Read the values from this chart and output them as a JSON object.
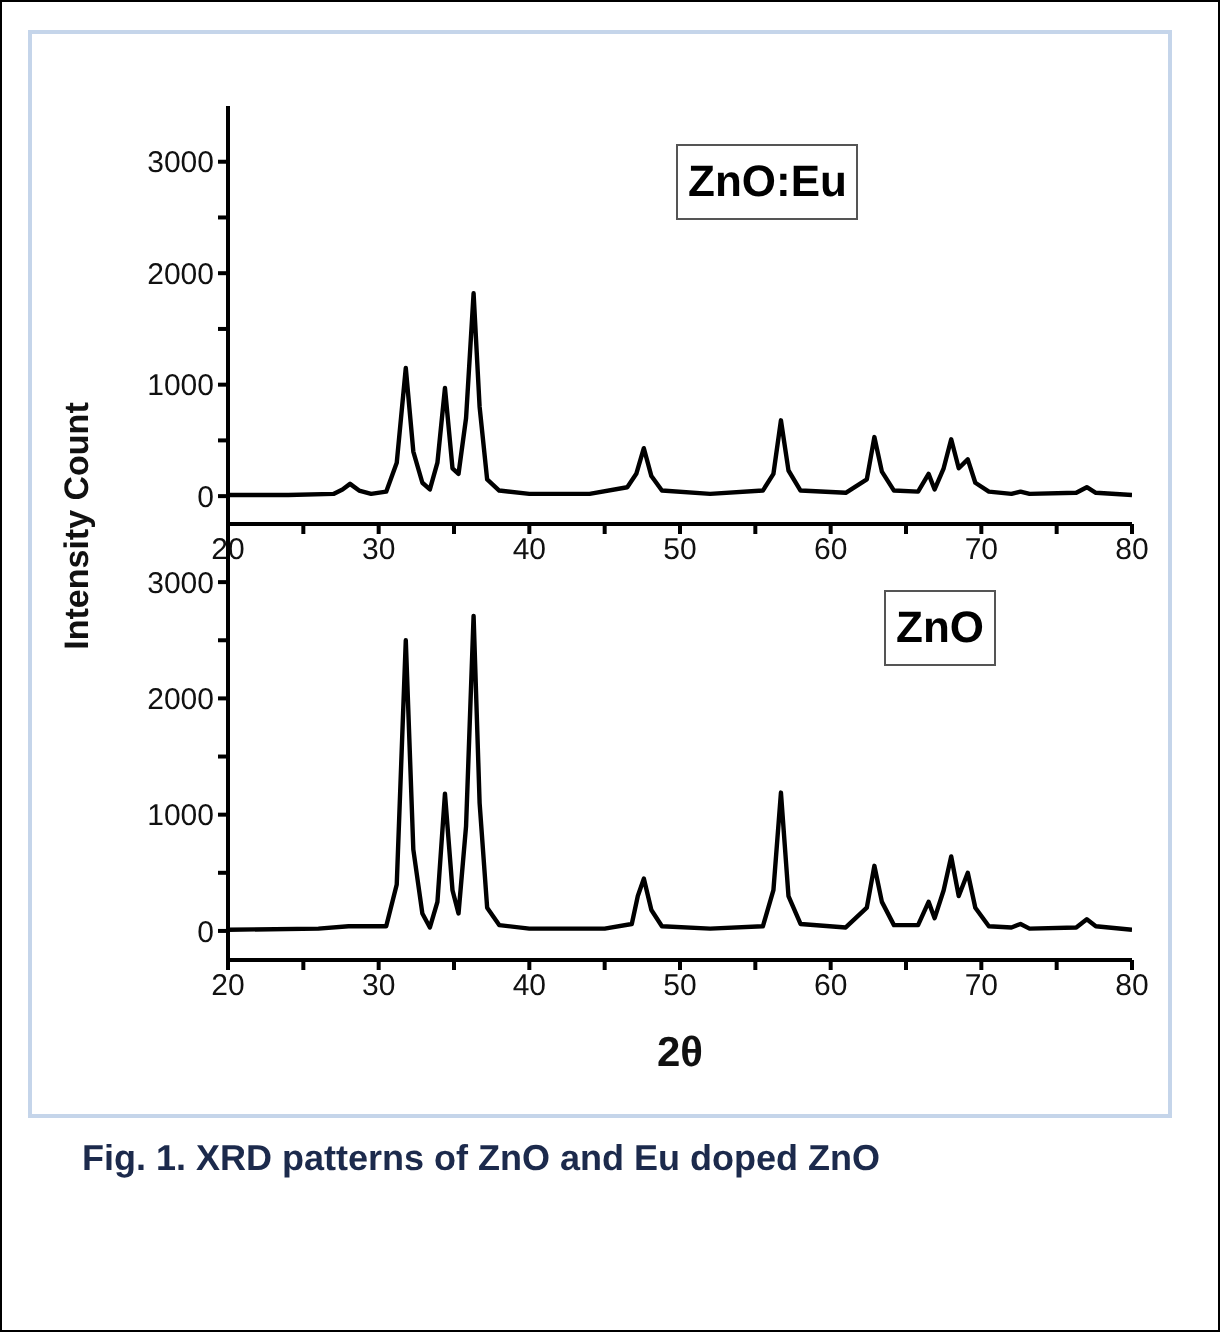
{
  "chart_data": [
    {
      "type": "line",
      "ylabel": "Intensity Count",
      "annotations": [
        "ZnO:Eu"
      ],
      "series": [
        {
          "color": "#000000",
          "x": [
            20,
            24,
            27,
            27.6,
            28.1,
            28.7,
            29.5,
            30.5,
            31.2,
            31.8,
            32.3,
            32.9,
            33.4,
            33.9,
            34.4,
            34.9,
            35.3,
            35.8,
            36.3,
            36.7,
            37.2,
            38,
            40,
            44,
            46.5,
            47.1,
            47.6,
            48.1,
            48.8,
            52,
            55.5,
            56.2,
            56.7,
            57.2,
            58,
            61,
            62.4,
            62.9,
            63.4,
            64.2,
            65.8,
            66.5,
            66.9,
            67.5,
            68,
            68.5,
            69.1,
            69.6,
            70.5,
            72,
            72.6,
            73.2,
            76.3,
            77,
            77.6,
            80
          ],
          "values": [
            10,
            10,
            20,
            60,
            110,
            50,
            20,
            40,
            300,
            1150,
            400,
            120,
            60,
            300,
            970,
            250,
            200,
            700,
            1820,
            800,
            150,
            50,
            20,
            20,
            80,
            200,
            430,
            180,
            50,
            20,
            50,
            200,
            680,
            230,
            50,
            30,
            150,
            530,
            220,
            50,
            40,
            200,
            60,
            250,
            510,
            250,
            330,
            120,
            40,
            20,
            40,
            20,
            30,
            80,
            30,
            10
          ]
        }
      ],
      "xlim": [
        20,
        80
      ],
      "xticks": [
        20,
        {
          "value": 25,
          "label": null
        },
        30,
        {
          "value": 35,
          "label": null
        },
        40,
        {
          "value": 45,
          "label": null
        },
        50,
        {
          "value": 55,
          "label": null
        },
        60,
        {
          "value": 65,
          "label": null
        },
        70,
        {
          "value": 75,
          "label": null
        },
        80
      ],
      "ylim": [
        -250,
        3500
      ],
      "yticks": [
        0,
        {
          "value": 500,
          "label": null
        },
        1000,
        {
          "value": 1500,
          "label": null
        },
        2000,
        {
          "value": 2500,
          "label": null
        },
        3000
      ],
      "grid": false,
      "legend": false
    },
    {
      "type": "line",
      "xlabel": "2θ",
      "annotations": [
        "ZnO",
        "Fig. 1. XRD patterns of ZnO and Eu doped ZnO"
      ],
      "series": [
        {
          "color": "#000000",
          "x": [
            20,
            26,
            28,
            30.5,
            31.2,
            31.8,
            32.3,
            32.9,
            33.4,
            33.9,
            34.4,
            34.9,
            35.3,
            35.8,
            36.3,
            36.7,
            37.2,
            38,
            40,
            45,
            46.8,
            47.2,
            47.6,
            48.1,
            48.8,
            52,
            55.5,
            56.2,
            56.7,
            57.2,
            58,
            61,
            62.4,
            62.9,
            63.4,
            64.2,
            65.8,
            66.5,
            66.9,
            67.5,
            68,
            68.5,
            69.1,
            69.6,
            70.5,
            72,
            72.6,
            73.2,
            76.3,
            77,
            77.6,
            80
          ],
          "values": [
            10,
            20,
            40,
            40,
            400,
            2500,
            700,
            150,
            30,
            250,
            1180,
            350,
            150,
            900,
            2710,
            1100,
            200,
            50,
            20,
            20,
            60,
            300,
            450,
            180,
            40,
            20,
            40,
            350,
            1190,
            300,
            60,
            30,
            200,
            560,
            250,
            50,
            50,
            250,
            110,
            350,
            640,
            300,
            500,
            200,
            40,
            30,
            60,
            20,
            30,
            100,
            40,
            10
          ]
        }
      ],
      "xlim": [
        20,
        80
      ],
      "xticks": [
        20,
        {
          "value": 25,
          "label": null
        },
        30,
        {
          "value": 35,
          "label": null
        },
        40,
        {
          "value": 45,
          "label": null
        },
        50,
        {
          "value": 55,
          "label": null
        },
        60,
        {
          "value": 65,
          "label": null
        },
        70,
        {
          "value": 75,
          "label": null
        },
        80
      ],
      "ylim": [
        -250,
        3500
      ],
      "yticks": [
        0,
        {
          "value": 500,
          "label": null
        },
        1000,
        {
          "value": 1500,
          "label": null
        },
        2000,
        {
          "value": 2500,
          "label": null
        },
        3000
      ],
      "grid": false,
      "legend": false
    }
  ]
}
